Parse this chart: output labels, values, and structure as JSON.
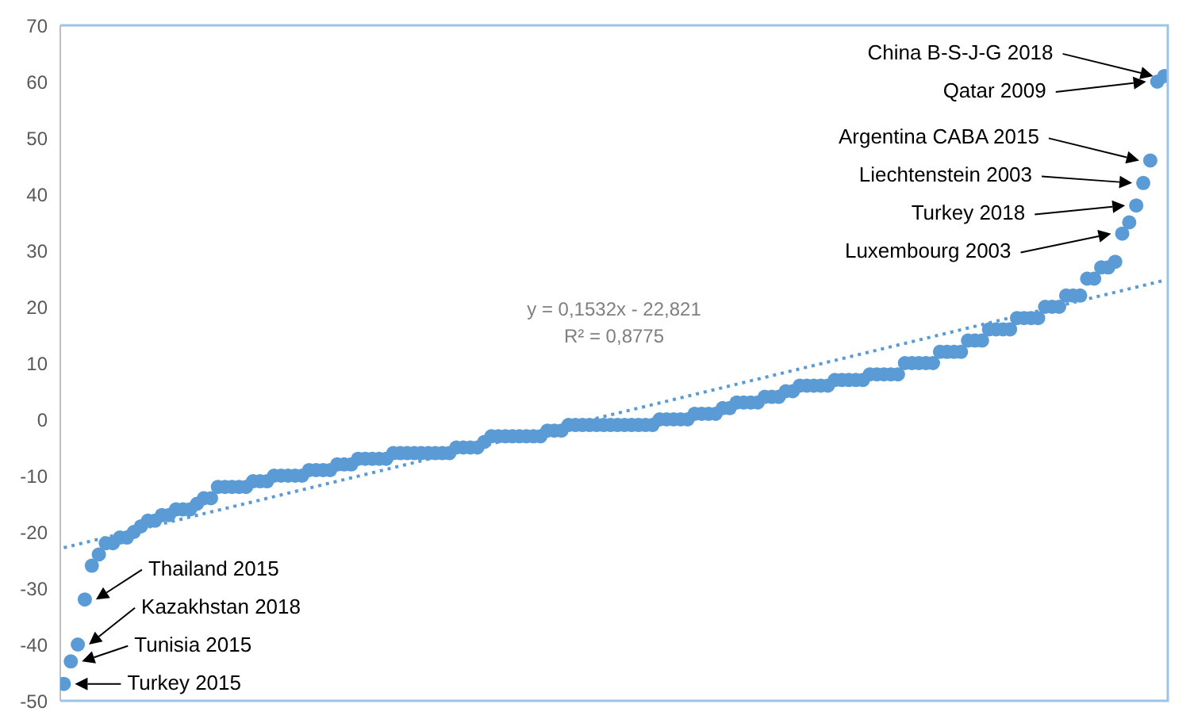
{
  "chart_data": {
    "type": "scatter",
    "ylim": [
      -50,
      70
    ],
    "yticks": [
      -50,
      -40,
      -30,
      -20,
      -10,
      0,
      10,
      20,
      30,
      40,
      50,
      60,
      70
    ],
    "tick_labels": "y",
    "categories": [
      null,
      null,
      null,
      null,
      null,
      null,
      null,
      null,
      null,
      null,
      null,
      null,
      null,
      null,
      null,
      null,
      null,
      null,
      null,
      null,
      null,
      null,
      null,
      null,
      null,
      null,
      null,
      null,
      null,
      null,
      null,
      null,
      null,
      null,
      null,
      null,
      null,
      null,
      null,
      null,
      null,
      null,
      null,
      null,
      null,
      null,
      null,
      null,
      null,
      null,
      null,
      null,
      null,
      null,
      null,
      null,
      null,
      null,
      null,
      null,
      null,
      null,
      null,
      null,
      null,
      null,
      null,
      null,
      null,
      null,
      null,
      null,
      null,
      null,
      null,
      null,
      null,
      null,
      null,
      null,
      null,
      null,
      null,
      null,
      null,
      null,
      null,
      null,
      null,
      null,
      null,
      null,
      null,
      null,
      null,
      null,
      null,
      null,
      null,
      null,
      null,
      null,
      null,
      null,
      null,
      null,
      null,
      null,
      null,
      null,
      null,
      null,
      null,
      null,
      null,
      null,
      null,
      null,
      null,
      null,
      null,
      null,
      null,
      null,
      null,
      null,
      null,
      null,
      null,
      null,
      null,
      null,
      null,
      null,
      null,
      null,
      null,
      null,
      null,
      null,
      null,
      null,
      null,
      null,
      null,
      null,
      null,
      null,
      null,
      null,
      null,
      null,
      null,
      null,
      null,
      null,
      null,
      null
    ],
    "series": [
      {
        "color": "#5b9bd5",
        "marker": "circle",
        "values": [
          -47,
          -43,
          -40,
          -32,
          -26,
          -24,
          -22,
          -22,
          -21,
          -21,
          -20,
          -19,
          -18,
          -18,
          -17,
          -17,
          -16,
          -16,
          -16,
          -15,
          -14,
          -14,
          -12,
          -12,
          -12,
          -12,
          -12,
          -11,
          -11,
          -11,
          -10,
          -10,
          -10,
          -10,
          -10,
          -9,
          -9,
          -9,
          -9,
          -8,
          -8,
          -8,
          -7,
          -7,
          -7,
          -7,
          -7,
          -6,
          -6,
          -6,
          -6,
          -6,
          -6,
          -6,
          -6,
          -6,
          -5,
          -5,
          -5,
          -5,
          -4,
          -3,
          -3,
          -3,
          -3,
          -3,
          -3,
          -3,
          -3,
          -2,
          -2,
          -2,
          -1,
          -1,
          -1,
          -1,
          -1,
          -1,
          -1,
          -1,
          -1,
          -1,
          -1,
          -1,
          -1,
          0,
          0,
          0,
          0,
          0,
          1,
          1,
          1,
          1,
          2,
          2,
          3,
          3,
          3,
          3,
          4,
          4,
          4,
          5,
          5,
          6,
          6,
          6,
          6,
          6,
          7,
          7,
          7,
          7,
          7,
          8,
          8,
          8,
          8,
          8,
          10,
          10,
          10,
          10,
          10,
          12,
          12,
          12,
          12,
          14,
          14,
          14,
          16,
          16,
          16,
          16,
          18,
          18,
          18,
          18,
          20,
          20,
          20,
          22,
          22,
          22,
          25,
          25,
          27,
          27,
          28,
          33,
          35,
          38,
          42,
          46,
          60,
          61
        ]
      },
      {
        "type": "line",
        "color": "#5b9bd5",
        "marker": "none",
        "line_style": "dotted",
        "values": [
          -22.8,
          null,
          null,
          null,
          null,
          null,
          null,
          null,
          null,
          null,
          null,
          null,
          null,
          null,
          null,
          null,
          null,
          null,
          null,
          null,
          null,
          null,
          null,
          null,
          null,
          null,
          null,
          null,
          null,
          null,
          null,
          null,
          null,
          null,
          null,
          null,
          null,
          null,
          null,
          null,
          null,
          null,
          null,
          null,
          null,
          null,
          null,
          null,
          null,
          null,
          null,
          null,
          null,
          null,
          null,
          null,
          null,
          null,
          null,
          null,
          null,
          null,
          null,
          null,
          null,
          null,
          null,
          null,
          null,
          null,
          null,
          null,
          null,
          null,
          null,
          null,
          null,
          null,
          null,
          null,
          null,
          null,
          null,
          null,
          null,
          null,
          null,
          null,
          null,
          null,
          null,
          null,
          null,
          null,
          null,
          null,
          null,
          null,
          null,
          null,
          null,
          null,
          null,
          null,
          null,
          null,
          null,
          null,
          null,
          null,
          null,
          null,
          null,
          null,
          null,
          null,
          null,
          null,
          null,
          null,
          null,
          null,
          null,
          null,
          null,
          null,
          null,
          null,
          null,
          null,
          null,
          null,
          null,
          null,
          null,
          null,
          null,
          null,
          null,
          null,
          null,
          null,
          null,
          null,
          null,
          null,
          null,
          null,
          null,
          null,
          null,
          null,
          null,
          null,
          null,
          null,
          null,
          24.7
        ]
      }
    ],
    "annotations": [
      "y = 0,1532x - 22,821",
      "R² = 0,8775",
      "China B-S-J-G 2018",
      "Qatar 2009",
      "Argentina CABA 2015",
      "Liechtenstein 2003",
      "Turkey 2018",
      "Luxembourg 2003",
      "Thailand 2015",
      "Kazakhstan 2018",
      "Tunisia 2015",
      "Turkey 2015"
    ]
  }
}
